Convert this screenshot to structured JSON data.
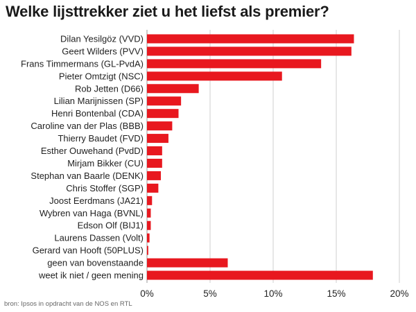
{
  "title": "Welke lijsttrekker ziet u het liefst als premier?",
  "source": "bron: Ipsos in opdracht van de NOS en RTL",
  "colors": {
    "bar": "#e8181f",
    "grid": "#cfcfcf",
    "axis": "#9a9a9a"
  },
  "chart_data": {
    "type": "bar",
    "orientation": "horizontal",
    "title": "Welke lijsttrekker ziet u het liefst als premier?",
    "xlabel": "",
    "ylabel": "",
    "xlim": [
      0,
      20
    ],
    "x_ticks": [
      0,
      5,
      10,
      15,
      20
    ],
    "tick_suffix": "%",
    "grid": true,
    "categories": [
      "Dilan Yesilgöz (VVD)",
      "Geert Wilders (PVV)",
      "Frans Timmermans (GL-PvdA)",
      "Pieter Omtzigt (NSC)",
      "Rob Jetten (D66)",
      "Lilian Marijnissen (SP)",
      "Henri Bontenbal (CDA)",
      "Caroline van der Plas (BBB)",
      "Thierry Baudet (FVD)",
      "Esther Ouwehand (PvdD)",
      "Mirjam Bikker (CU)",
      "Stephan van Baarle (DENK)",
      "Chris Stoffer (SGP)",
      "Joost Eerdmans (JA21)",
      "Wybren van Haga (BVNL)",
      "Edson Olf (BIJ1)",
      "Laurens Dassen (Volt)",
      "Gerard van Hooft (50PLUS)",
      "geen van bovenstaande",
      "weet ik niet / geen mening"
    ],
    "values": [
      16.4,
      16.2,
      13.8,
      10.7,
      4.1,
      2.7,
      2.5,
      2.0,
      1.7,
      1.2,
      1.2,
      1.1,
      0.9,
      0.4,
      0.3,
      0.3,
      0.2,
      0.1,
      6.4,
      17.9
    ]
  }
}
